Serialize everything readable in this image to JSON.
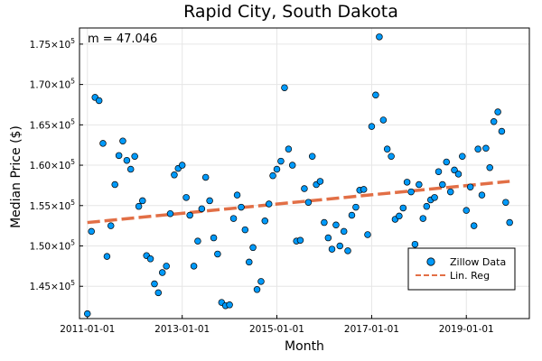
{
  "chart_data": {
    "type": "scatter",
    "title": "Rapid City, South Dakota",
    "xlabel": "Month",
    "ylabel": "Median Price ($)",
    "annotation": "m = 47.046",
    "xlim": [
      "2010-11-01",
      "2020-05-01"
    ],
    "ylim": [
      141000,
      177000
    ],
    "xticks": [
      "2011-01-01",
      "2013-01-01",
      "2015-01-01",
      "2017-01-01",
      "2019-01-01"
    ],
    "yticks": [
      {
        "value": 145000,
        "mantissa": "1.45",
        "exponent": "5"
      },
      {
        "value": 150000,
        "mantissa": "1.50",
        "exponent": "5"
      },
      {
        "value": 155000,
        "mantissa": "1.55",
        "exponent": "5"
      },
      {
        "value": 160000,
        "mantissa": "1.60",
        "exponent": "5"
      },
      {
        "value": 165000,
        "mantissa": "1.65",
        "exponent": "5"
      },
      {
        "value": 170000,
        "mantissa": "1.70",
        "exponent": "5"
      },
      {
        "value": 175000,
        "mantissa": "1.75",
        "exponent": "5"
      }
    ],
    "tick_prefix": "×10",
    "grid": true,
    "legend": {
      "position": "bottom-right",
      "entries": [
        {
          "label": "Zillow Data",
          "marker": "circle",
          "color": "#009AFA"
        },
        {
          "label": "Lin. Reg",
          "marker": "dashed-line",
          "color": "#E26F46"
        }
      ]
    },
    "series": [
      {
        "name": "Zillow Data",
        "color": "#009AFA",
        "x": [
          "2011-01-01",
          "2011-02-01",
          "2011-03-01",
          "2011-04-01",
          "2011-05-01",
          "2011-06-01",
          "2011-07-01",
          "2011-08-01",
          "2011-09-01",
          "2011-10-01",
          "2011-11-01",
          "2011-12-01",
          "2012-01-01",
          "2012-02-01",
          "2012-03-01",
          "2012-04-01",
          "2012-05-01",
          "2012-06-01",
          "2012-07-01",
          "2012-08-01",
          "2012-09-01",
          "2012-10-01",
          "2012-11-01",
          "2012-12-01",
          "2013-01-01",
          "2013-02-01",
          "2013-03-01",
          "2013-04-01",
          "2013-05-01",
          "2013-06-01",
          "2013-07-01",
          "2013-08-01",
          "2013-09-01",
          "2013-10-01",
          "2013-11-01",
          "2013-12-01",
          "2014-01-01",
          "2014-02-01",
          "2014-03-01",
          "2014-04-01",
          "2014-05-01",
          "2014-06-01",
          "2014-07-01",
          "2014-08-01",
          "2014-09-01",
          "2014-10-01",
          "2014-11-01",
          "2014-12-01",
          "2015-01-01",
          "2015-02-01",
          "2015-03-01",
          "2015-04-01",
          "2015-05-01",
          "2015-06-01",
          "2015-07-01",
          "2015-08-01",
          "2015-09-01",
          "2015-10-01",
          "2015-11-01",
          "2015-12-01",
          "2016-01-01",
          "2016-02-01",
          "2016-03-01",
          "2016-04-01",
          "2016-05-01",
          "2016-06-01",
          "2016-07-01",
          "2016-08-01",
          "2016-09-01",
          "2016-10-01",
          "2016-11-01",
          "2016-12-01",
          "2017-01-01",
          "2017-02-01",
          "2017-03-01",
          "2017-04-01",
          "2017-05-01",
          "2017-06-01",
          "2017-07-01",
          "2017-08-01",
          "2017-09-01",
          "2017-10-01",
          "2017-11-01",
          "2017-12-01",
          "2018-01-01",
          "2018-02-01",
          "2018-03-01",
          "2018-04-01",
          "2018-05-01",
          "2018-06-01",
          "2018-07-01",
          "2018-08-01",
          "2018-09-01",
          "2018-10-01",
          "2018-11-01",
          "2018-12-01",
          "2019-01-01",
          "2019-02-01",
          "2019-03-01",
          "2019-04-01",
          "2019-05-01",
          "2019-06-01",
          "2019-07-01",
          "2019-08-01",
          "2019-09-01",
          "2019-10-01",
          "2019-11-01",
          "2019-12-01"
        ],
        "y": [
          141600,
          151800,
          168400,
          168000,
          162700,
          148700,
          152500,
          157600,
          161200,
          163000,
          160600,
          159500,
          161100,
          154900,
          155600,
          148800,
          148400,
          145300,
          144200,
          146700,
          147500,
          154000,
          158800,
          159600,
          160000,
          156000,
          153800,
          147500,
          150600,
          154600,
          158500,
          155600,
          151000,
          149000,
          143000,
          142600,
          142700,
          153400,
          156300,
          154800,
          152000,
          148000,
          149800,
          144600,
          145600,
          153100,
          155200,
          158700,
          159500,
          160500,
          169600,
          162000,
          160000,
          150600,
          150700,
          157100,
          155400,
          161100,
          157600,
          158000,
          152900,
          151000,
          149600,
          152600,
          150000,
          151800,
          149400,
          153800,
          154800,
          156900,
          157000,
          151400,
          164800,
          168700,
          175900,
          165600,
          162000,
          161100,
          153300,
          153700,
          154700,
          157900,
          156700,
          150200,
          157600,
          153400,
          154900,
          155700,
          156000,
          159200,
          157600,
          160400,
          156700,
          159400,
          158900,
          161100,
          154400,
          157300,
          152500,
          162000,
          156300,
          162100,
          159700,
          165400,
          166600,
          164200,
          155400,
          152900
        ]
      },
      {
        "name": "Lin. Reg",
        "color": "#E26F46",
        "x": [
          "2011-01-01",
          "2019-12-01"
        ],
        "y": [
          152900,
          158000
        ]
      }
    ]
  }
}
